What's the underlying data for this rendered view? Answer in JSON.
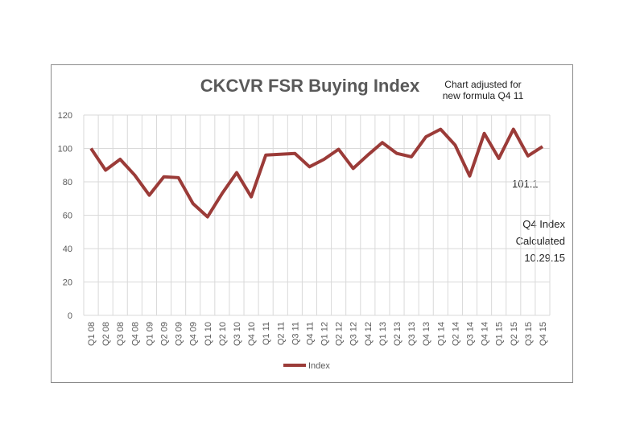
{
  "chart_data": {
    "type": "line",
    "title": "CKCVR FSR Buying Index",
    "categories": [
      "Q1 08",
      "Q2 08",
      "Q3 08",
      "Q4 08",
      "Q1 09",
      "Q2 09",
      "Q3 09",
      "Q4 09",
      "Q1 10",
      "Q2 10",
      "Q3 10",
      "Q4 10",
      "Q1 11",
      "Q2 11",
      "Q3 11",
      "Q4 11",
      "Q1 12",
      "Q2 12",
      "Q3 12",
      "Q4 12",
      "Q1 13",
      "Q2 13",
      "Q3 13",
      "Q4 13",
      "Q1 14",
      "Q2 14",
      "Q3 14",
      "Q4 14",
      "Q1 15",
      "Q2 15",
      "Q3 15",
      "Q4 15"
    ],
    "series": [
      {
        "name": "Index",
        "color": "#9b3b38",
        "values": [
          100,
          87,
          93.5,
          84,
          72,
          83,
          82.5,
          67,
          59,
          73,
          85.5,
          71,
          96,
          96.5,
          97,
          89,
          93.5,
          99.5,
          88,
          96,
          103.5,
          97,
          95,
          107,
          111.5,
          102,
          83.5,
          109,
          94,
          111.5,
          95.5,
          101.1
        ]
      }
    ],
    "ylim": [
      0,
      120
    ],
    "yticks": [
      0,
      20,
      40,
      60,
      80,
      100,
      120
    ],
    "grid": true,
    "legend": "bottom",
    "annotations": [
      "Chart adjusted for",
      "new formula  Q4 11",
      "101.1",
      "Q4 Index",
      "Calculated",
      "10.29.15"
    ]
  }
}
